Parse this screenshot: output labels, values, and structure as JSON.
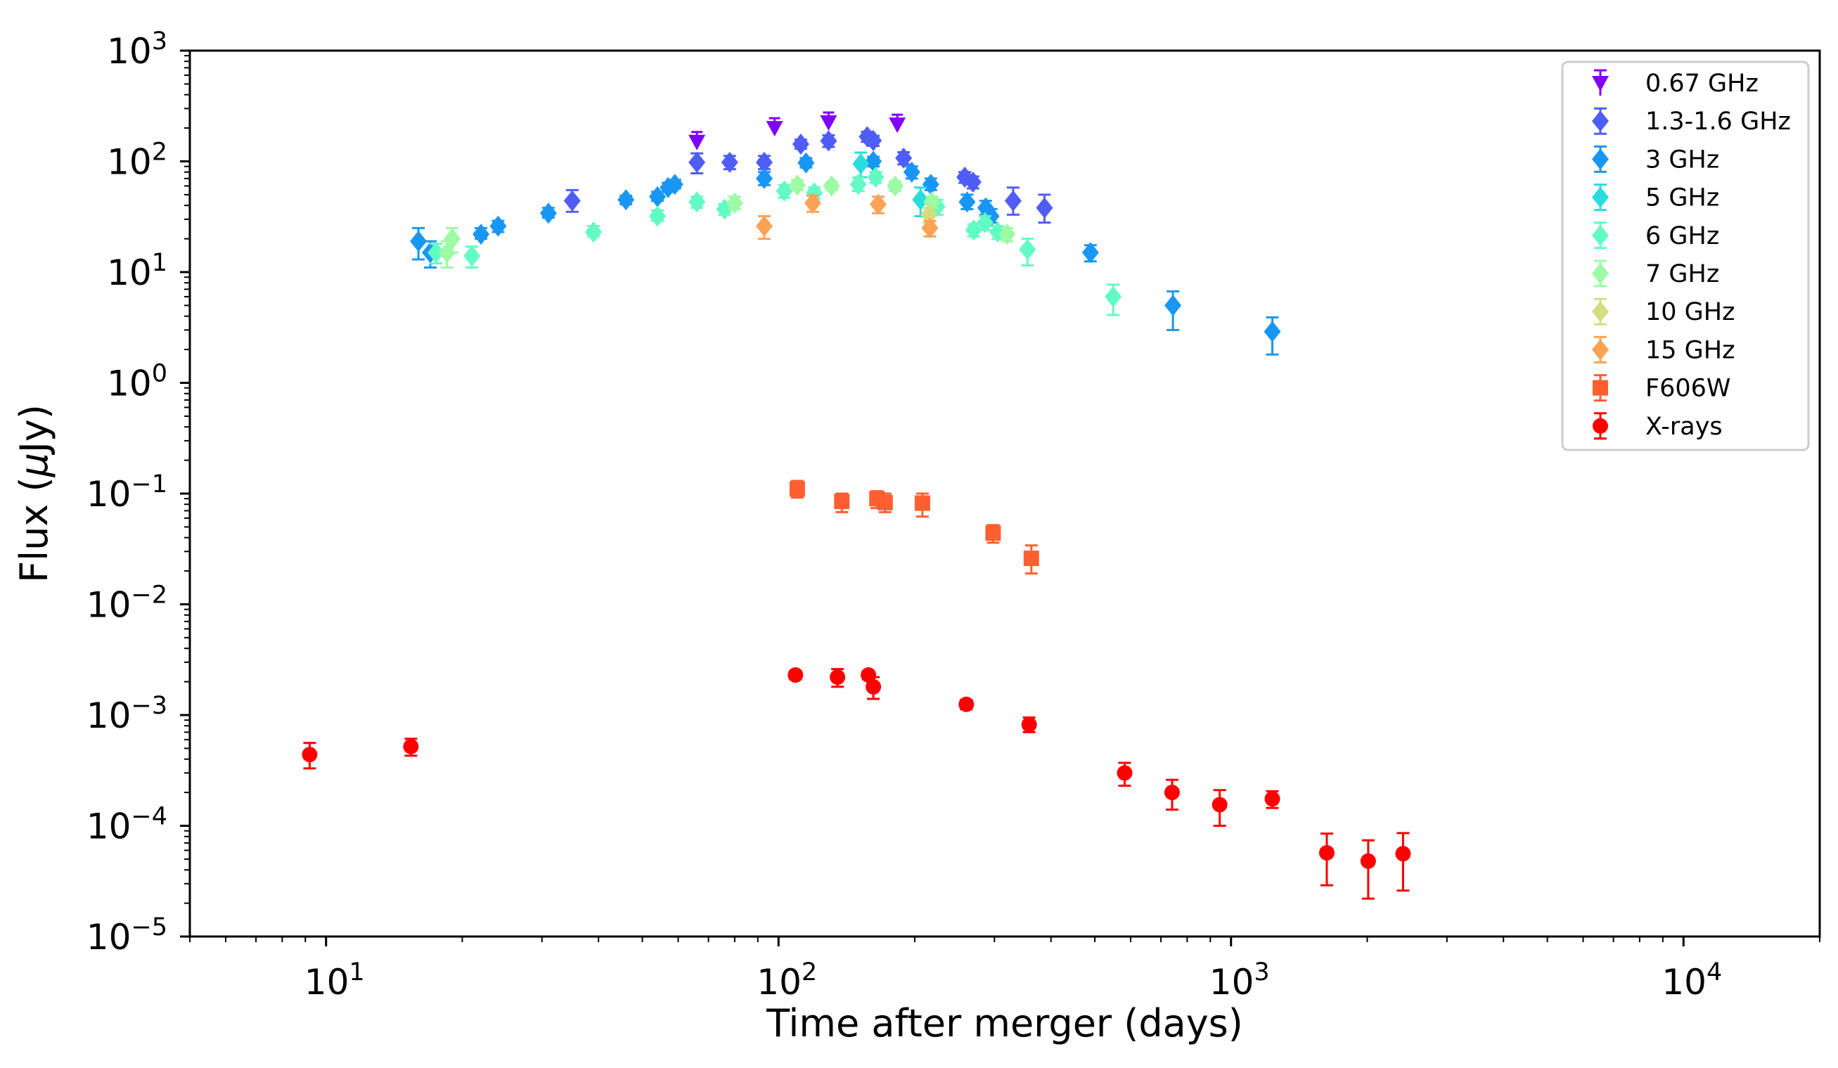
{
  "chart_data": {
    "type": "scatter",
    "title": "",
    "xlabel": "Time after merger (days)",
    "ylabel_prefix": "Flux (",
    "ylabel_mu": "μ",
    "ylabel_suffix": "Jy)",
    "xscale": "log",
    "yscale": "log",
    "xlim": [
      5,
      20000
    ],
    "ylim": [
      1e-05,
      1000
    ],
    "x_ticks": [
      {
        "base": "10",
        "exp": "1",
        "value": 10
      },
      {
        "base": "10",
        "exp": "2",
        "value": 100
      },
      {
        "base": "10",
        "exp": "3",
        "value": 1000
      },
      {
        "base": "10",
        "exp": "4",
        "value": 10000
      }
    ],
    "y_ticks": [
      {
        "base": "10",
        "exp": "−5",
        "value": 1e-05
      },
      {
        "base": "10",
        "exp": "−4",
        "value": 0.0001
      },
      {
        "base": "10",
        "exp": "−3",
        "value": 0.001
      },
      {
        "base": "10",
        "exp": "−2",
        "value": 0.01
      },
      {
        "base": "10",
        "exp": "−1",
        "value": 0.1
      },
      {
        "base": "10",
        "exp": "0",
        "value": 1
      },
      {
        "base": "10",
        "exp": "1",
        "value": 10
      },
      {
        "base": "10",
        "exp": "2",
        "value": 100
      },
      {
        "base": "10",
        "exp": "3",
        "value": 1000
      }
    ],
    "legend_position": "top-right",
    "series": [
      {
        "name": "0.67 GHz",
        "color": "#8000ff",
        "marker": "triangle-down",
        "upper_limit": true,
        "points": [
          [
            66,
            150
          ],
          [
            98,
            200
          ],
          [
            129,
            225
          ],
          [
            183,
            215
          ]
        ]
      },
      {
        "name": "1.3-1.6 GHz",
        "color": "#4f5df6",
        "marker": "diamond",
        "points": [
          [
            35,
            44,
            35,
            55
          ],
          [
            66,
            98,
            78,
            118
          ],
          [
            78,
            98,
            85,
            112
          ],
          [
            93,
            98,
            85,
            112
          ],
          [
            112,
            143,
            130,
            157
          ],
          [
            129,
            153,
            135,
            172
          ],
          [
            157,
            167,
            150,
            185
          ],
          [
            162,
            154,
            138,
            170
          ],
          [
            189,
            107,
            94,
            121
          ],
          [
            258,
            72,
            64,
            80
          ],
          [
            269,
            65,
            57,
            73
          ],
          [
            330,
            44,
            33,
            58
          ],
          [
            387,
            38,
            28,
            50
          ]
        ]
      },
      {
        "name": "3 GHz",
        "color": "#1996f3",
        "marker": "diamond",
        "points": [
          [
            16,
            19,
            13,
            25
          ],
          [
            17,
            15,
            11,
            19
          ],
          [
            22,
            22,
            20,
            25
          ],
          [
            24,
            26,
            23,
            29
          ],
          [
            31,
            34,
            31,
            38
          ],
          [
            46,
            45,
            41,
            49
          ],
          [
            54,
            48,
            44,
            53
          ],
          [
            57,
            58,
            53,
            64
          ],
          [
            59,
            62,
            57,
            68
          ],
          [
            93,
            70,
            61,
            80
          ],
          [
            115,
            97,
            88,
            107
          ],
          [
            162,
            100,
            90,
            110
          ],
          [
            197,
            80,
            70,
            90
          ],
          [
            217,
            62,
            55,
            70
          ],
          [
            261,
            43,
            37,
            50
          ],
          [
            287,
            38,
            33,
            44
          ],
          [
            295,
            32,
            28,
            37
          ],
          [
            489,
            15,
            12.5,
            17.5
          ],
          [
            744,
            5,
            3,
            6.7
          ],
          [
            1234,
            2.9,
            1.8,
            3.9
          ]
        ]
      },
      {
        "name": "5 GHz",
        "color": "#2adddd",
        "marker": "diamond",
        "points": [
          [
            152,
            95,
            72,
            120
          ],
          [
            206,
            45,
            32,
            58
          ]
        ]
      },
      {
        "name": "6 GHz",
        "color": "#62fbc4",
        "marker": "diamond",
        "points": [
          [
            17.5,
            15,
            12,
            18
          ],
          [
            21,
            14,
            11,
            17
          ],
          [
            39,
            23,
            21,
            26
          ],
          [
            54,
            32,
            29,
            36
          ],
          [
            66,
            43,
            38,
            48
          ],
          [
            76,
            37,
            33,
            41
          ],
          [
            103,
            54,
            47,
            61
          ],
          [
            120,
            52,
            46,
            58
          ],
          [
            150,
            62,
            54,
            71
          ],
          [
            164,
            72,
            64,
            80
          ],
          [
            224,
            39,
            33,
            45
          ],
          [
            270,
            24,
            21,
            27
          ],
          [
            286,
            28,
            24,
            32
          ],
          [
            305,
            23,
            20,
            26
          ],
          [
            355,
            16,
            11.5,
            20
          ],
          [
            549,
            6,
            4.1,
            7.7
          ]
        ]
      },
      {
        "name": "7 GHz",
        "color": "#9cfba4",
        "marker": "diamond",
        "points": [
          [
            19,
            20,
            15,
            25
          ],
          [
            18.5,
            15,
            11,
            19
          ],
          [
            80,
            42,
            37,
            48
          ],
          [
            110,
            61,
            55,
            68
          ],
          [
            131,
            60,
            55,
            65
          ],
          [
            181,
            60,
            54,
            66
          ],
          [
            218,
            43,
            38,
            48
          ],
          [
            320,
            22,
            19,
            25
          ]
        ]
      },
      {
        "name": "10 GHz",
        "color": "#d4dd80",
        "marker": "diamond",
        "points": [
          [
            215,
            33,
            28,
            38
          ]
        ]
      },
      {
        "name": "15 GHz",
        "color": "#ffa256",
        "marker": "diamond",
        "points": [
          [
            93,
            26,
            20,
            32
          ],
          [
            119,
            42,
            35,
            49
          ],
          [
            166,
            41,
            34,
            48
          ],
          [
            216,
            25,
            21,
            29
          ]
        ]
      },
      {
        "name": "F606W",
        "color": "#ff5f30",
        "marker": "square",
        "points": [
          [
            110,
            0.11,
            0.092,
            0.13
          ],
          [
            138,
            0.085,
            0.068,
            0.1
          ],
          [
            165,
            0.09,
            0.074,
            0.105
          ],
          [
            172,
            0.083,
            0.068,
            0.1
          ],
          [
            208,
            0.082,
            0.062,
            0.1
          ],
          [
            298,
            0.044,
            0.036,
            0.052
          ],
          [
            362,
            0.026,
            0.019,
            0.034
          ]
        ]
      },
      {
        "name": "X-rays",
        "color": "#ff0000",
        "marker": "circle",
        "points": [
          [
            9.2,
            0.00044,
            0.00033,
            0.00056
          ],
          [
            15.4,
            0.00052,
            0.00043,
            0.00061
          ],
          [
            109,
            0.0023,
            0.0021,
            0.0025
          ],
          [
            135,
            0.0022,
            0.0018,
            0.0026
          ],
          [
            158,
            0.0023,
            0.0021,
            0.0025
          ],
          [
            162,
            0.0018,
            0.0014,
            0.0022
          ],
          [
            260,
            0.00125,
            0.00113,
            0.00137
          ],
          [
            358,
            0.00082,
            0.0007,
            0.00095
          ],
          [
            582,
            0.0003,
            0.00023,
            0.00037
          ],
          [
            741,
            0.0002,
            0.00014,
            0.00026
          ],
          [
            944,
            0.000155,
            0.0001,
            0.00021
          ],
          [
            1234,
            0.000175,
            0.000145,
            0.000205
          ],
          [
            1628,
            5.7e-05,
            2.9e-05,
            8.5e-05
          ],
          [
            2010,
            4.8e-05,
            2.2e-05,
            7.4e-05
          ],
          [
            2400,
            5.6e-05,
            2.6e-05,
            8.6e-05
          ]
        ]
      }
    ]
  }
}
